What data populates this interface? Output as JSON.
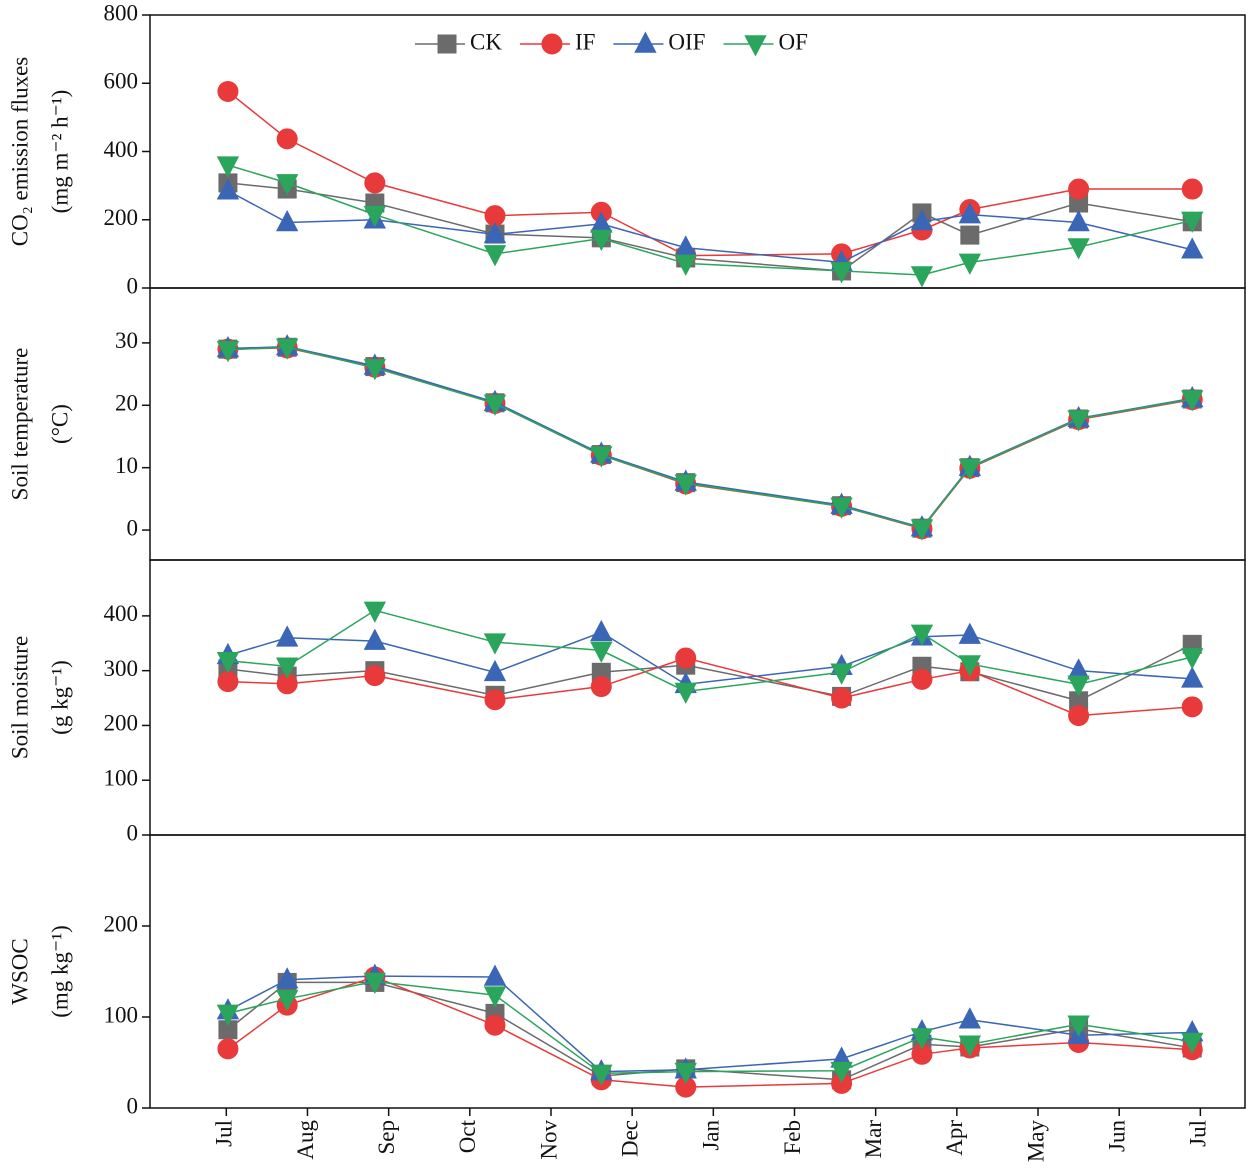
{
  "chart_data": [
    {
      "type": "line",
      "ylabel": [
        "CO₂ emission fluxes",
        "(mg m⁻² h⁻¹)"
      ],
      "legend": "top",
      "x": [
        0.02,
        0.75,
        1.83,
        3.31,
        4.62,
        5.66,
        7.58,
        8.57,
        9.16,
        10.5,
        11.9
      ],
      "xlim": [
        -0.94,
        12.55
      ],
      "ylim": [
        0,
        800
      ],
      "yticks": [
        0,
        200,
        400,
        600,
        800
      ],
      "series": [
        {
          "name": "CK",
          "color": "#6b6b6b",
          "marker": "s",
          "values": [
            308,
            290,
            249,
            158,
            147,
            88,
            50,
            220,
            155,
            249,
            194
          ]
        },
        {
          "name": "IF",
          "color": "#e83a3a",
          "marker": "o",
          "values": [
            576,
            437,
            308,
            212,
            222,
            95,
            100,
            170,
            230,
            290,
            290
          ]
        },
        {
          "name": "OIF",
          "color": "#3b66b5",
          "marker": "^",
          "values": [
            285,
            192,
            200,
            157,
            188,
            118,
            75,
            195,
            215,
            192,
            112
          ]
        },
        {
          "name": "OF",
          "color": "#2ba55c",
          "marker": "v",
          "values": [
            360,
            308,
            215,
            100,
            145,
            72,
            50,
            38,
            75,
            120,
            198
          ]
        }
      ]
    },
    {
      "type": "line",
      "ylabel": [
        "Soil temperature",
        "(°C)"
      ],
      "x": [
        0.02,
        0.75,
        1.83,
        3.31,
        4.62,
        5.66,
        7.58,
        8.57,
        9.16,
        10.5,
        11.9
      ],
      "xlim": [
        -0.94,
        12.55
      ],
      "ylim": [
        -4.8,
        38.8
      ],
      "yticks": [
        0,
        10,
        20,
        30
      ],
      "series": [
        {
          "name": "CK",
          "color": "#6b6b6b",
          "marker": "s",
          "values": [
            29,
            29.3,
            26.2,
            20.4,
            12.1,
            7.6,
            3.9,
            0.3,
            10,
            17.8,
            21
          ]
        },
        {
          "name": "IF",
          "color": "#e83a3a",
          "marker": "o",
          "values": [
            29,
            29.2,
            26.1,
            20.3,
            12,
            7.4,
            3.8,
            0.2,
            9.9,
            17.7,
            20.9
          ]
        },
        {
          "name": "OIF",
          "color": "#3b66b5",
          "marker": "^",
          "values": [
            29.1,
            29.4,
            26.3,
            20.5,
            12.2,
            7.7,
            4,
            0.4,
            10.1,
            17.9,
            21.1
          ]
        },
        {
          "name": "OF",
          "color": "#2ba55c",
          "marker": "v",
          "values": [
            28.9,
            29.3,
            26,
            20.3,
            12,
            7.5,
            3.8,
            0.3,
            10,
            17.8,
            21
          ]
        }
      ]
    },
    {
      "type": "line",
      "ylabel": [
        "Soil  moisture",
        "(g kg⁻¹)"
      ],
      "x": [
        0.02,
        0.75,
        1.83,
        3.31,
        4.62,
        5.66,
        7.58,
        8.57,
        9.16,
        10.5,
        11.9
      ],
      "xlim": [
        -0.94,
        12.55
      ],
      "ylim": [
        0,
        502
      ],
      "yticks": [
        0,
        100,
        200,
        300,
        400
      ],
      "series": [
        {
          "name": "CK",
          "color": "#6b6b6b",
          "marker": "s",
          "values": [
            303,
            290,
            300,
            255,
            297,
            310,
            253,
            308,
            298,
            245,
            348
          ]
        },
        {
          "name": "IF",
          "color": "#e83a3a",
          "marker": "o",
          "values": [
            280,
            276,
            291,
            247,
            271,
            323,
            250,
            284,
            300,
            218,
            234
          ]
        },
        {
          "name": "OIF",
          "color": "#3b66b5",
          "marker": "^",
          "values": [
            328,
            360,
            354,
            297,
            370,
            275,
            308,
            362,
            365,
            300,
            285
          ]
        },
        {
          "name": "OF",
          "color": "#2ba55c",
          "marker": "v",
          "values": [
            318,
            308,
            410,
            352,
            337,
            262,
            297,
            368,
            312,
            275,
            325
          ]
        }
      ]
    },
    {
      "type": "line",
      "ylabel": [
        "WSOC",
        "(mg kg⁻¹)"
      ],
      "x": [
        0.02,
        0.75,
        1.83,
        3.31,
        4.62,
        5.66,
        7.58,
        8.57,
        9.16,
        10.5,
        11.9
      ],
      "xlim": [
        -0.94,
        12.55
      ],
      "xticks": [
        {
          "value": 0,
          "label": "Jul"
        },
        {
          "value": 1,
          "label": "Aug"
        },
        {
          "value": 2,
          "label": "Sep"
        },
        {
          "value": 3,
          "label": "Oct"
        },
        {
          "value": 4,
          "label": "Nov"
        },
        {
          "value": 5,
          "label": "Dec"
        },
        {
          "value": 6,
          "label": "Jan"
        },
        {
          "value": 7,
          "label": "Feb"
        },
        {
          "value": 8,
          "label": "Mar"
        },
        {
          "value": 9,
          "label": "Apr"
        },
        {
          "value": 10,
          "label": "May"
        },
        {
          "value": 11,
          "label": "Jun"
        },
        {
          "value": 12,
          "label": "Jul"
        }
      ],
      "ylim": [
        0,
        300
      ],
      "yticks": [
        0,
        100,
        200
      ],
      "series": [
        {
          "name": "CK",
          "color": "#6b6b6b",
          "marker": "s",
          "values": [
            86,
            138,
            138,
            104,
            35,
            43,
            31,
            70,
            67,
            87,
            66
          ]
        },
        {
          "name": "IF",
          "color": "#e83a3a",
          "marker": "o",
          "values": [
            65,
            113,
            144,
            91,
            31,
            23,
            27,
            59,
            66,
            72,
            64
          ]
        },
        {
          "name": "OIF",
          "color": "#3b66b5",
          "marker": "^",
          "values": [
            107,
            141,
            145,
            144,
            40,
            42,
            54,
            84,
            97,
            80,
            83
          ]
        },
        {
          "name": "OF",
          "color": "#2ba55c",
          "marker": "v",
          "values": [
            104,
            120,
            139,
            124,
            38,
            40,
            41,
            78,
            70,
            92,
            73
          ]
        }
      ]
    }
  ]
}
